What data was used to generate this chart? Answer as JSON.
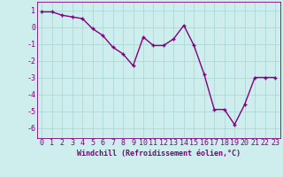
{
  "x": [
    0,
    1,
    2,
    3,
    4,
    5,
    6,
    7,
    8,
    9,
    10,
    11,
    12,
    13,
    14,
    15,
    16,
    17,
    18,
    19,
    20,
    21,
    22,
    23
  ],
  "y": [
    0.9,
    0.9,
    0.7,
    0.6,
    0.5,
    -0.1,
    -0.5,
    -1.2,
    -1.6,
    -2.3,
    -0.6,
    -1.1,
    -1.1,
    -0.7,
    0.1,
    -1.1,
    -2.8,
    -4.9,
    -4.9,
    -5.8,
    -4.6,
    -3.0,
    -3.0,
    -3.0
  ],
  "line_color": "#800080",
  "marker": "+",
  "marker_size": 3,
  "line_width": 1.0,
  "bg_color": "#cdeeed",
  "grid_color": "#b0d8d8",
  "xlabel": "Windchill (Refroidissement éolien,°C)",
  "xlabel_fontsize": 6,
  "xtick_labels": [
    "0",
    "1",
    "2",
    "3",
    "4",
    "5",
    "6",
    "7",
    "8",
    "9",
    "10",
    "11",
    "12",
    "13",
    "14",
    "15",
    "16",
    "17",
    "18",
    "19",
    "20",
    "21",
    "22",
    "23"
  ],
  "yticks": [
    1,
    0,
    -1,
    -2,
    -3,
    -4,
    -5,
    -6
  ],
  "ylim": [
    -6.6,
    1.5
  ],
  "xlim": [
    -0.5,
    23.5
  ],
  "tick_fontsize": 6,
  "label_color": "#800080"
}
